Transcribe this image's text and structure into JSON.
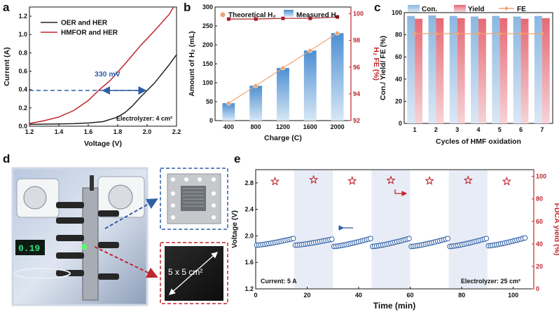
{
  "panels": {
    "a": "a",
    "b": "b",
    "c": "c",
    "d": "d",
    "e": "e"
  },
  "colors": {
    "red": "#c0262d",
    "blue": "#2e5fa6",
    "light_blue": "#8fb9e0",
    "pink": "#eb8f98",
    "orange": "#f0a374",
    "dark_red": "#a81d2a",
    "grey_band": "#e8ecf6"
  },
  "chart_data": [
    {
      "id": "a",
      "type": "line",
      "xlabel": "Voltage (V)",
      "ylabel": "Current (A)",
      "xlim": [
        1.2,
        2.2
      ],
      "ylim": [
        0,
        1.3
      ],
      "xticks": [
        1.2,
        1.4,
        1.6,
        1.8,
        2.0,
        2.2
      ],
      "yticks": [
        0.0,
        0.2,
        0.4,
        0.6,
        0.8,
        1.0,
        1.2
      ],
      "series": [
        {
          "name": "OER and HER",
          "color": "#222222",
          "x": [
            1.2,
            1.4,
            1.5,
            1.6,
            1.7,
            1.8,
            1.85,
            1.9,
            1.95,
            2.0,
            2.05,
            2.1,
            2.15,
            2.2
          ],
          "y": [
            0.02,
            0.025,
            0.028,
            0.035,
            0.05,
            0.1,
            0.15,
            0.22,
            0.31,
            0.39,
            0.47,
            0.57,
            0.67,
            0.78
          ]
        },
        {
          "name": "HMFOR and HER",
          "color": "#c0262d",
          "x": [
            1.2,
            1.3,
            1.4,
            1.5,
            1.6,
            1.67,
            1.75,
            1.85,
            1.95,
            2.05,
            2.15,
            2.18
          ],
          "y": [
            0.03,
            0.06,
            0.1,
            0.17,
            0.28,
            0.39,
            0.5,
            0.68,
            0.87,
            1.04,
            1.22,
            1.3
          ]
        }
      ],
      "annotation": "330 mV",
      "arrow": {
        "x1": 1.67,
        "x2": 2.0,
        "y": 0.39
      },
      "note": "Electrolyzer: 4 cm²"
    },
    {
      "id": "b",
      "type": "bar",
      "xlabel": "Charge (C)",
      "ylabel": "Amount of H₂ (mL)",
      "y2label": "H₂ FE (%)",
      "categories": [
        "400",
        "800",
        "1200",
        "1600",
        "2000"
      ],
      "ylim": [
        0,
        300
      ],
      "yticks": [
        0,
        50,
        100,
        150,
        200,
        250,
        300
      ],
      "y2lim": [
        92,
        100.5
      ],
      "y2ticks": [
        92,
        94,
        96,
        98,
        100
      ],
      "series": [
        {
          "name": "Measured H₂",
          "values": [
            46,
            92,
            139,
            185,
            231
          ]
        },
        {
          "name": "Theoretical H₂",
          "values": [
            46,
            92,
            139,
            185,
            231
          ]
        },
        {
          "name": "FE",
          "values": [
            99.6,
            99.6,
            99.65,
            99.65,
            99.75
          ]
        }
      ],
      "legend": [
        "Theoretical H₂",
        "Measured H₂"
      ]
    },
    {
      "id": "c",
      "type": "bar",
      "xlabel": "Cycles of HMF oxidation",
      "ylabel": "Con./ Yield/ FE (%)",
      "categories": [
        "1",
        "2",
        "3",
        "4",
        "5",
        "6",
        "7"
      ],
      "ylim": [
        0,
        100
      ],
      "yticks": [
        0,
        20,
        40,
        60,
        80,
        100
      ],
      "series": [
        {
          "name": "Con.",
          "values": [
            97,
            97.5,
            97,
            96.5,
            97,
            96.5,
            97
          ]
        },
        {
          "name": "Yield",
          "values": [
            94.5,
            95,
            95,
            94.5,
            95,
            94.5,
            95
          ]
        },
        {
          "name": "FE",
          "values": [
            81,
            81,
            81,
            81,
            81,
            81,
            81
          ]
        }
      ],
      "legend": [
        "Con.",
        "Yield",
        "FE"
      ]
    },
    {
      "id": "e",
      "type": "scatter",
      "xlabel": "Time (min)",
      "ylabel": "Voltage (V)",
      "y2label": "FDCA yield (%)",
      "xlim": [
        0,
        108
      ],
      "xticks": [
        0,
        20,
        40,
        60,
        80,
        100
      ],
      "ylim": [
        1.2,
        3.0
      ],
      "yticks": [
        1.2,
        1.6,
        2.0,
        2.4,
        2.8
      ],
      "y2lim": [
        0,
        106
      ],
      "y2ticks": [
        0,
        20,
        40,
        60,
        80,
        100
      ],
      "segments": [
        [
          0,
          15,
          1.86,
          1.96
        ],
        [
          15,
          30,
          1.86,
          1.95
        ],
        [
          30,
          45,
          1.84,
          1.96
        ],
        [
          45,
          60,
          1.84,
          1.96
        ],
        [
          60,
          75,
          1.84,
          1.96
        ],
        [
          75,
          90,
          1.84,
          1.96
        ],
        [
          90,
          105,
          1.85,
          1.97
        ]
      ],
      "bands": [
        [
          15,
          30
        ],
        [
          45,
          60
        ],
        [
          75,
          90
        ]
      ],
      "fdca_yield": {
        "x": [
          7.5,
          22.5,
          37.5,
          52.5,
          67.5,
          82.5,
          97.5
        ],
        "y": [
          95.5,
          97,
          96,
          96.5,
          96,
          96.5,
          95.5
        ]
      },
      "note_left": "Current: 5 A",
      "note_right": "Electrolyzer: 25 cm²"
    }
  ],
  "photo": {
    "label": "5 x 5 cm²"
  }
}
